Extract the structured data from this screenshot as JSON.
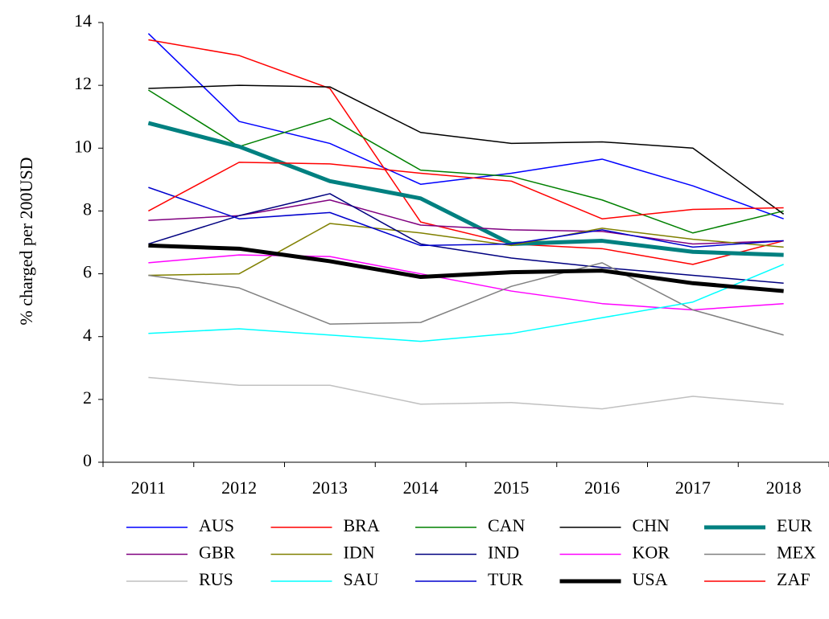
{
  "chart_data": {
    "type": "line",
    "y_label": "% charged per 200USD",
    "categories": [
      "2011",
      "2012",
      "2013",
      "2014",
      "2015",
      "2016",
      "2017",
      "2018"
    ],
    "ylim": [
      0,
      14
    ],
    "yticks": [
      0,
      2,
      4,
      6,
      8,
      10,
      12,
      14
    ],
    "legend_position": "bottom",
    "series": [
      {
        "name": "AUS",
        "color": "#0000ff",
        "line_width": 1.5,
        "values": [
          13.65,
          10.85,
          10.15,
          8.85,
          9.2,
          9.65,
          8.8,
          7.75
        ]
      },
      {
        "name": "BRA",
        "color": "#ff0000",
        "line_width": 1.5,
        "values": [
          13.45,
          12.95,
          11.9,
          7.65,
          6.95,
          6.8,
          6.3,
          7.05
        ]
      },
      {
        "name": "CAN",
        "color": "#008000",
        "line_width": 1.5,
        "values": [
          11.85,
          10.05,
          10.95,
          9.3,
          9.1,
          8.35,
          7.3,
          8.0
        ]
      },
      {
        "name": "CHN",
        "color": "#000000",
        "line_width": 1.5,
        "values": [
          11.9,
          12.0,
          11.95,
          10.5,
          10.15,
          10.2,
          10.0,
          7.9
        ]
      },
      {
        "name": "EUR",
        "color": "#008080",
        "line_width": 5,
        "values": [
          10.8,
          10.05,
          8.95,
          8.4,
          6.95,
          7.05,
          6.7,
          6.6
        ]
      },
      {
        "name": "GBR",
        "color": "#800080",
        "line_width": 1.5,
        "values": [
          7.7,
          7.85,
          8.35,
          7.55,
          7.4,
          7.35,
          6.95,
          7.05
        ]
      },
      {
        "name": "IDN",
        "color": "#808000",
        "line_width": 1.5,
        "values": [
          5.95,
          6.0,
          7.6,
          7.3,
          6.9,
          7.45,
          7.1,
          6.85
        ]
      },
      {
        "name": "IND",
        "color": "#000080",
        "line_width": 1.5,
        "values": [
          6.95,
          7.85,
          8.55,
          6.95,
          6.5,
          6.2,
          5.95,
          5.7
        ]
      },
      {
        "name": "KOR",
        "color": "#ff00ff",
        "line_width": 1.5,
        "values": [
          6.35,
          6.6,
          6.55,
          6.0,
          5.45,
          5.05,
          4.85,
          5.05
        ]
      },
      {
        "name": "MEX",
        "color": "#808080",
        "line_width": 1.5,
        "values": [
          5.95,
          5.55,
          4.4,
          4.45,
          5.6,
          6.35,
          4.85,
          4.05
        ]
      },
      {
        "name": "RUS",
        "color": "#c0c0c0",
        "line_width": 1.5,
        "values": [
          2.7,
          2.45,
          2.45,
          1.85,
          1.9,
          1.7,
          2.1,
          1.85
        ]
      },
      {
        "name": "SAU",
        "color": "#00ffff",
        "line_width": 1.5,
        "values": [
          4.1,
          4.25,
          4.05,
          3.85,
          4.1,
          4.6,
          5.1,
          6.3
        ]
      },
      {
        "name": "TUR",
        "color": "#0000cd",
        "line_width": 1.5,
        "values": [
          8.75,
          7.75,
          7.95,
          6.9,
          6.95,
          7.4,
          6.85,
          7.05
        ]
      },
      {
        "name": "USA",
        "color": "#000000",
        "line_width": 5,
        "values": [
          6.9,
          6.8,
          6.4,
          5.9,
          6.05,
          6.1,
          5.7,
          5.45
        ]
      },
      {
        "name": "ZAF",
        "color": "#ff0000",
        "line_width": 1.5,
        "values": [
          8.0,
          9.55,
          9.5,
          9.2,
          8.95,
          7.75,
          8.05,
          8.1
        ]
      }
    ]
  }
}
